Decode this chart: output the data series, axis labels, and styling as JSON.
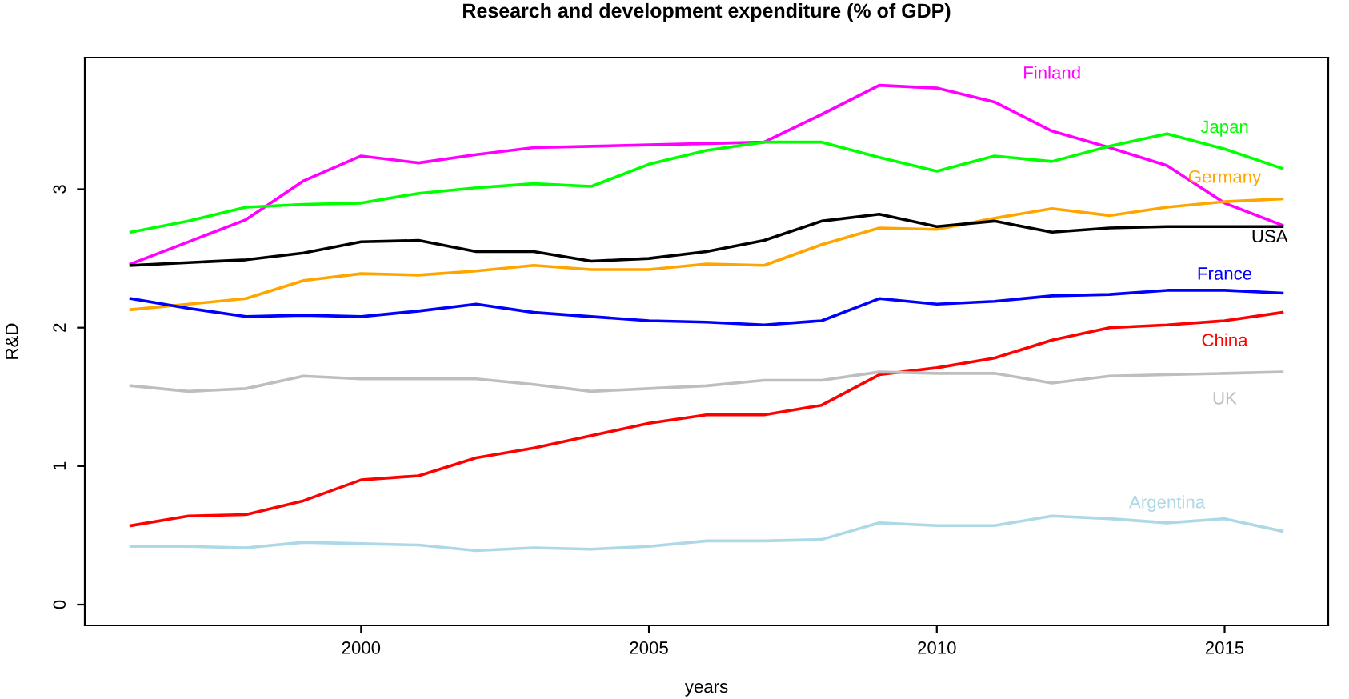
{
  "chart_data": {
    "type": "line",
    "title": "Research and development expenditure (% of GDP)",
    "xlabel": "years",
    "ylabel": "R&D",
    "x": [
      1996,
      1997,
      1998,
      1999,
      2000,
      2001,
      2002,
      2003,
      2004,
      2005,
      2006,
      2007,
      2008,
      2009,
      2010,
      2011,
      2012,
      2013,
      2014,
      2015,
      2016
    ],
    "xlim": [
      1995.2,
      2016.8
    ],
    "xticks": [
      2000,
      2005,
      2010,
      2015
    ],
    "ylim": [
      -0.15,
      3.95
    ],
    "yticks": [
      0,
      1,
      2,
      3
    ],
    "grid": false,
    "legend": false,
    "marker": "none",
    "line_style": "solid",
    "series": [
      {
        "name": "Finland",
        "color": "#ff00ff",
        "values": [
          2.46,
          2.62,
          2.78,
          3.06,
          3.24,
          3.19,
          3.25,
          3.3,
          3.31,
          3.32,
          3.33,
          3.34,
          3.54,
          3.75,
          3.73,
          3.63,
          3.42,
          3.3,
          3.17,
          2.9,
          2.74
        ]
      },
      {
        "name": "Japan",
        "color": "#00ff00",
        "values": [
          2.69,
          2.77,
          2.87,
          2.89,
          2.9,
          2.97,
          3.01,
          3.04,
          3.02,
          3.18,
          3.28,
          3.34,
          3.34,
          3.23,
          3.13,
          3.24,
          3.2,
          3.31,
          3.4,
          3.29,
          3.15
        ]
      },
      {
        "name": "Germany",
        "color": "#ffa500",
        "values": [
          2.13,
          2.17,
          2.21,
          2.34,
          2.39,
          2.38,
          2.41,
          2.45,
          2.42,
          2.42,
          2.46,
          2.45,
          2.6,
          2.72,
          2.71,
          2.79,
          2.86,
          2.81,
          2.87,
          2.91,
          2.93
        ]
      },
      {
        "name": "USA",
        "color": "#000000",
        "values": [
          2.45,
          2.47,
          2.49,
          2.54,
          2.62,
          2.63,
          2.55,
          2.55,
          2.48,
          2.5,
          2.55,
          2.63,
          2.77,
          2.82,
          2.73,
          2.77,
          2.69,
          2.72,
          2.73,
          2.73,
          2.73
        ]
      },
      {
        "name": "France",
        "color": "#0000ff",
        "values": [
          2.21,
          2.14,
          2.08,
          2.09,
          2.08,
          2.12,
          2.17,
          2.11,
          2.08,
          2.05,
          2.04,
          2.02,
          2.05,
          2.21,
          2.17,
          2.19,
          2.23,
          2.24,
          2.27,
          2.27,
          2.25
        ]
      },
      {
        "name": "China",
        "color": "#ff0000",
        "values": [
          0.57,
          0.64,
          0.65,
          0.75,
          0.9,
          0.93,
          1.06,
          1.13,
          1.22,
          1.31,
          1.37,
          1.37,
          1.44,
          1.66,
          1.71,
          1.78,
          1.91,
          2.0,
          2.02,
          2.05,
          2.11
        ]
      },
      {
        "name": "UK",
        "color": "#bebebe",
        "values": [
          1.58,
          1.54,
          1.56,
          1.65,
          1.63,
          1.63,
          1.63,
          1.59,
          1.54,
          1.56,
          1.58,
          1.62,
          1.62,
          1.68,
          1.67,
          1.67,
          1.6,
          1.65,
          1.66,
          1.67,
          1.68
        ]
      },
      {
        "name": "Argentina",
        "color": "#add8e6",
        "values": [
          0.42,
          0.42,
          0.41,
          0.45,
          0.44,
          0.43,
          0.39,
          0.41,
          0.4,
          0.42,
          0.46,
          0.46,
          0.47,
          0.59,
          0.57,
          0.57,
          0.64,
          0.62,
          0.59,
          0.62,
          0.53
        ]
      }
    ]
  }
}
